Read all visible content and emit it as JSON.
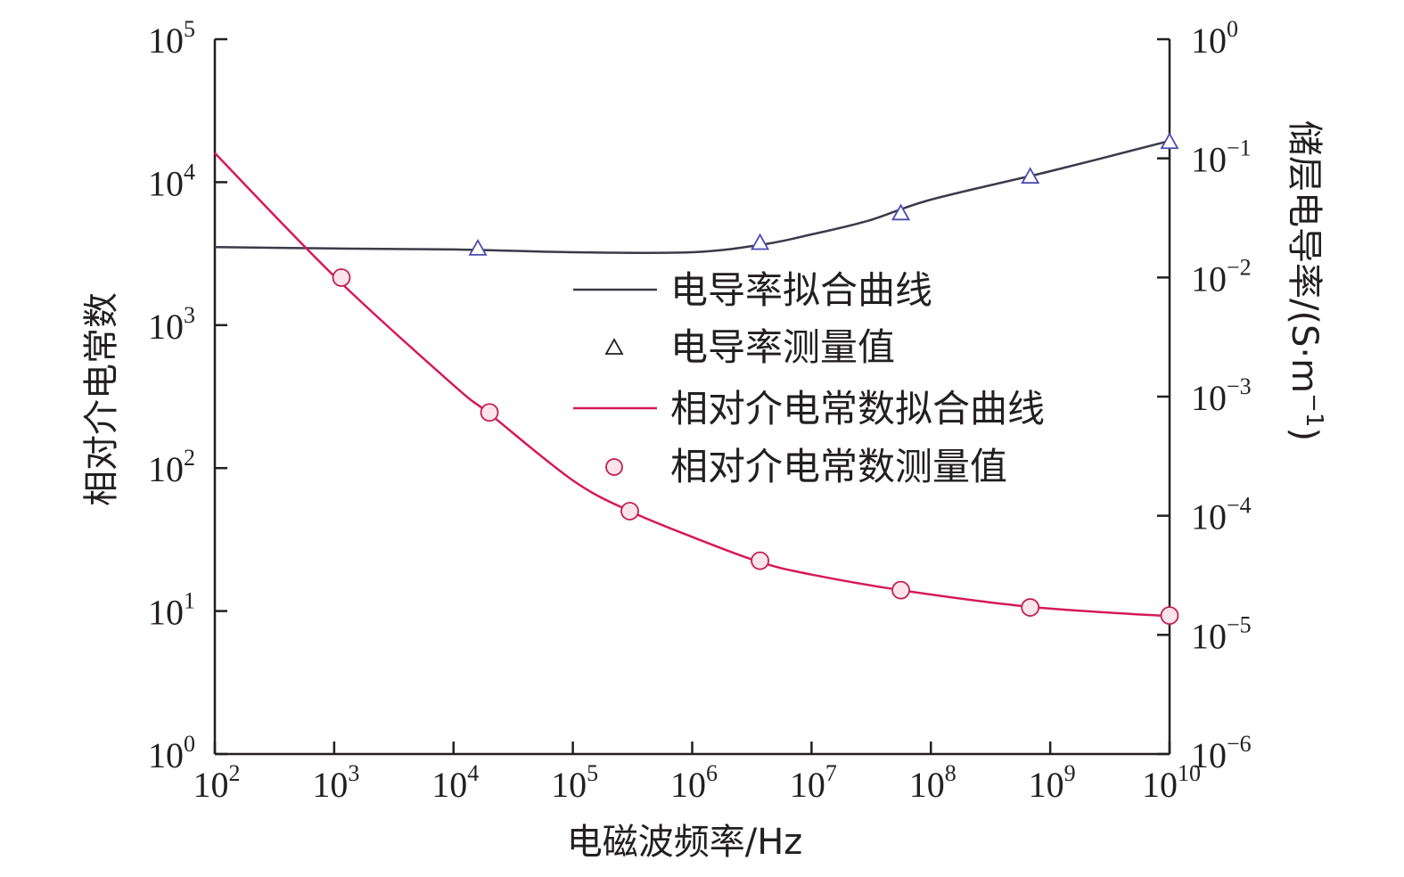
{
  "chart_data": {
    "type": "line",
    "xlabel": "电磁波频率/Hz",
    "ylabel_left": "相对介电常数",
    "ylabel_right": "储层电导率/(S·m",
    "ylabel_right_unit_exp": "−1",
    "ylabel_right_close": ")",
    "x_scale": "log",
    "xlim": [
      100,
      10000000000
    ],
    "x_ticks": [
      {
        "base": "10",
        "exp": "2"
      },
      {
        "base": "10",
        "exp": "3"
      },
      {
        "base": "10",
        "exp": "4"
      },
      {
        "base": "10",
        "exp": "5"
      },
      {
        "base": "10",
        "exp": "6"
      },
      {
        "base": "10",
        "exp": "7"
      },
      {
        "base": "10",
        "exp": "8"
      },
      {
        "base": "10",
        "exp": "9"
      },
      {
        "base": "10",
        "exp": "10"
      }
    ],
    "y_left_scale": "log",
    "ylim_left": [
      1,
      100000
    ],
    "y_left_ticks": [
      {
        "base": "10",
        "exp": "0"
      },
      {
        "base": "10",
        "exp": "1"
      },
      {
        "base": "10",
        "exp": "2"
      },
      {
        "base": "10",
        "exp": "3"
      },
      {
        "base": "10",
        "exp": "4"
      },
      {
        "base": "10",
        "exp": "5"
      }
    ],
    "y_right_scale": "log",
    "ylim_right": [
      1e-06,
      1
    ],
    "y_right_ticks": [
      {
        "base": "10",
        "exp": "−6"
      },
      {
        "base": "10",
        "exp": "−5"
      },
      {
        "base": "10",
        "exp": "−4"
      },
      {
        "base": "10",
        "exp": "−3"
      },
      {
        "base": "10",
        "exp": "−2"
      },
      {
        "base": "10",
        "exp": "−1"
      },
      {
        "base": "10",
        "exp": "0"
      }
    ],
    "legend_position": "center-right",
    "series": [
      {
        "name": "电导率拟合曲线",
        "kind": "line",
        "axis": "right",
        "color": "#3a3a4a",
        "x": [
          100,
          1000,
          10000,
          100000,
          1000000,
          4000000,
          10000000,
          30000000,
          100000000,
          1000000000,
          10000000000
        ],
        "y": [
          0.018,
          0.0175,
          0.0172,
          0.0163,
          0.0163,
          0.019,
          0.023,
          0.03,
          0.045,
          0.078,
          0.14
        ]
      },
      {
        "name": "电导率测量值",
        "kind": "marker",
        "marker": "triangle",
        "axis": "right",
        "color": "#4a4ab0",
        "x": [
          16000,
          3700000,
          56000000,
          680000000,
          10000000000
        ],
        "y": [
          0.0172,
          0.0192,
          0.034,
          0.069,
          0.135
        ]
      },
      {
        "name": "相对介电常数拟合曲线",
        "kind": "line",
        "axis": "left",
        "color": "#d6195a",
        "x": [
          100,
          1000,
          10000,
          20000,
          100000,
          300000,
          1000000,
          3700000,
          10000000,
          56000000,
          680000000,
          10000000000
        ],
        "y": [
          16000,
          2200,
          380,
          240,
          82,
          50,
          33,
          22,
          18,
          14,
          10.7,
          9.2
        ]
      },
      {
        "name": "相对介电常数测量值",
        "kind": "marker",
        "marker": "circle",
        "axis": "left",
        "color": "#c02050",
        "x": [
          1150,
          20000,
          300000,
          3700000,
          56000000,
          680000000,
          10000000000
        ],
        "y": [
          2150,
          245,
          50,
          22.5,
          14,
          10.6,
          9.3
        ]
      }
    ]
  }
}
